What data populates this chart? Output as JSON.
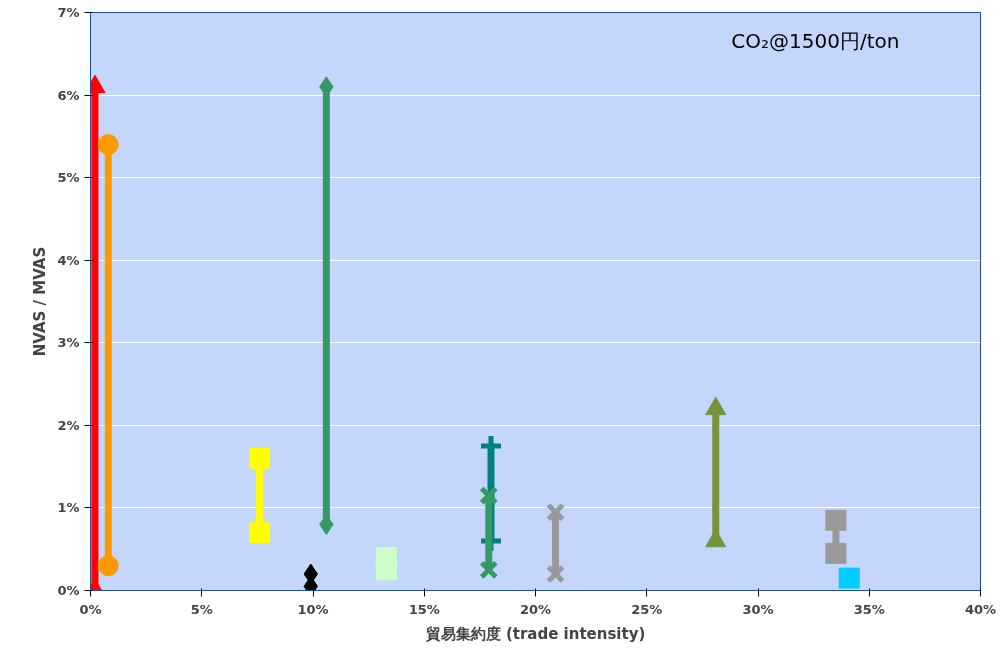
{
  "chart_data": {
    "type": "line",
    "xlabel": "貿易集約度 (trade intensity)",
    "ylabel": "NVAS / MVAS",
    "annotations": [
      "CO₂@1500円/ton"
    ],
    "xlim": [
      0,
      40
    ],
    "ylim": [
      0,
      7
    ],
    "xticks": [
      {
        "value": 0,
        "label": "0%"
      },
      {
        "value": 5,
        "label": "5%"
      },
      {
        "value": 10,
        "label": "10%"
      },
      {
        "value": 15,
        "label": "15%"
      },
      {
        "value": 20,
        "label": "20%"
      },
      {
        "value": 25,
        "label": "25%"
      },
      {
        "value": 30,
        "label": "30%"
      },
      {
        "value": 35,
        "label": "35%"
      },
      {
        "value": 40,
        "label": "40%"
      }
    ],
    "yticks": [
      {
        "value": 0,
        "label": "0%"
      },
      {
        "value": 1,
        "label": "1%"
      },
      {
        "value": 2,
        "label": "2%"
      },
      {
        "value": 3,
        "label": "3%"
      },
      {
        "value": 4,
        "label": "4%"
      },
      {
        "value": 5,
        "label": "5%"
      },
      {
        "value": 6,
        "label": "6%"
      },
      {
        "value": 7,
        "label": "7%"
      }
    ],
    "grid": "y",
    "series": [
      {
        "color": "#ff0000",
        "marker": "triangle",
        "x": [
          0.2,
          0.2
        ],
        "values": [
          6.1,
          0
        ]
      },
      {
        "color": "#ff9900",
        "marker": "circle",
        "x": [
          0.8,
          0.8
        ],
        "values": [
          5.4,
          0.3
        ]
      },
      {
        "color": "#ffff00",
        "marker": "square",
        "x": [
          7.6,
          7.6
        ],
        "values": [
          1.6,
          0.7
        ]
      },
      {
        "color": "#339966",
        "marker": "diamond",
        "x": [
          10.6,
          10.6
        ],
        "values": [
          6.1,
          0.8
        ]
      },
      {
        "type": "scatter",
        "color": "#000000",
        "marker": "diamond",
        "x": [
          9.9,
          9.9
        ],
        "values": [
          0.2,
          0.05
        ]
      },
      {
        "type": "scatter",
        "color": "#ccffcc",
        "marker": "square",
        "x": [
          13.3,
          13.3
        ],
        "values": [
          0.4,
          0.25
        ]
      },
      {
        "color": "#008080",
        "marker": "cross",
        "x": [
          18.0,
          18.0
        ],
        "values": [
          1.75,
          0.6
        ]
      },
      {
        "color": "#339966",
        "marker": "x",
        "x": [
          17.9,
          17.9
        ],
        "values": [
          1.15,
          0.25
        ]
      },
      {
        "color": "#999999",
        "marker": "x",
        "x": [
          20.9,
          20.9
        ],
        "values": [
          0.95,
          0.2
        ]
      },
      {
        "color": "#77933c",
        "marker": "triangle",
        "x": [
          28.1,
          28.1
        ],
        "values": [
          2.2,
          0.6
        ]
      },
      {
        "color": "#999999",
        "marker": "square",
        "x": [
          33.5,
          33.5
        ],
        "values": [
          0.85,
          0.45
        ]
      },
      {
        "color": "#00ccff",
        "marker": "square",
        "x": [
          34.1
        ],
        "values": [
          0.15
        ]
      }
    ]
  }
}
